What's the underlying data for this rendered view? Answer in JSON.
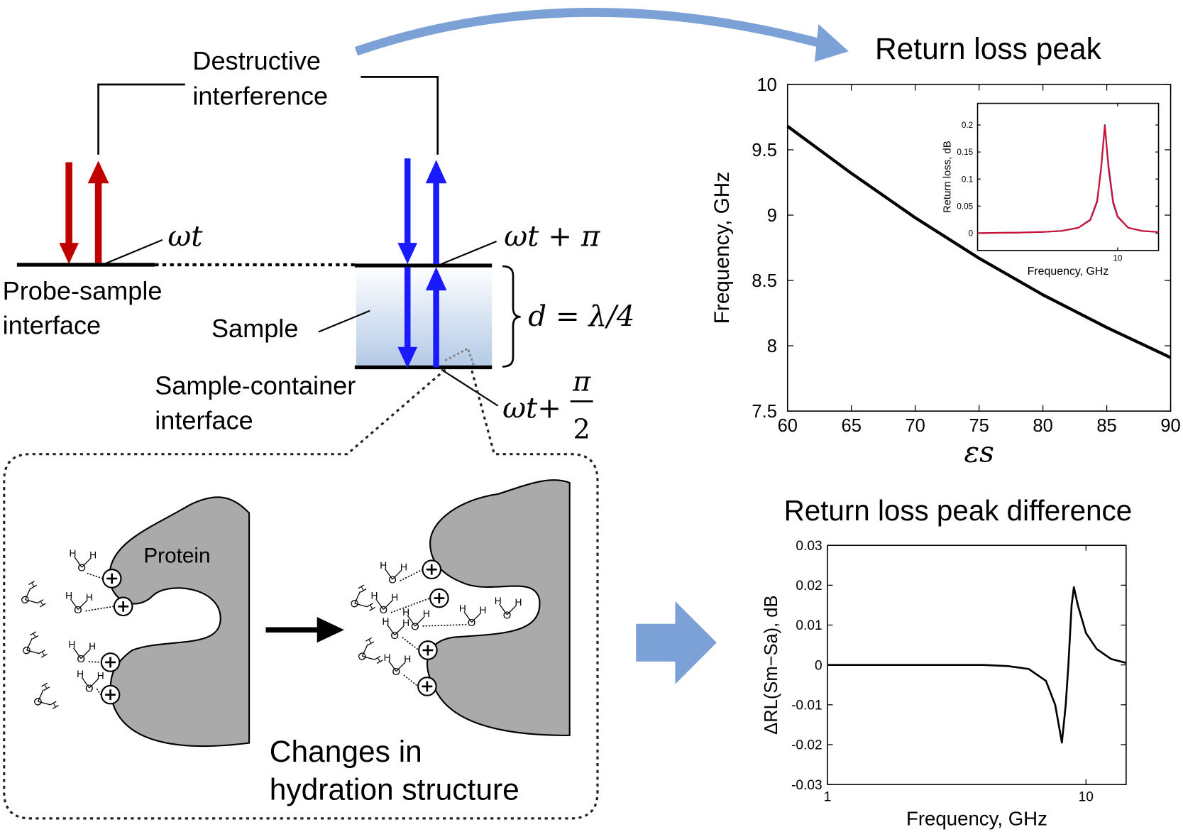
{
  "diagram": {
    "destructive_interference": [
      "Destructive",
      "interference"
    ],
    "phase_1": "ωt",
    "phase_2": "ωt + π",
    "phase_3": {
      "prefix": "ωt+",
      "numerator": "π",
      "denominator": "2"
    },
    "probe_sample_interface": [
      "Probe-sample",
      "interface"
    ],
    "sample": "Sample",
    "thickness": "d = λ/4",
    "sample_container_interface": [
      "Sample-container",
      "interface"
    ],
    "protein": "Protein",
    "caption": [
      "Changes in",
      "hydration structure"
    ],
    "water_atoms": {
      "hydrogen": "H",
      "oxygen": "O"
    }
  },
  "chart_data": [
    {
      "type": "line",
      "title": "Return loss peak",
      "xlabel": "εs",
      "ylabel": "Frequency, GHz",
      "x": [
        60,
        65,
        70,
        75,
        80,
        85,
        90
      ],
      "series": [
        {
          "color": "#000000",
          "values": [
            9.68,
            9.32,
            8.98,
            8.67,
            8.39,
            8.14,
            7.91
          ]
        }
      ],
      "xlim": [
        60,
        90
      ],
      "ylim": [
        7.5,
        10
      ],
      "xticks": [
        60,
        65,
        70,
        75,
        80,
        85,
        90
      ],
      "yticks": [
        7.5,
        8,
        8.5,
        9,
        9.5,
        10
      ]
    },
    {
      "type": "line",
      "xlabel": "Frequency, GHz",
      "ylabel": "Return loss, dB",
      "xscale": "log",
      "x": [
        2.8,
        4,
        5,
        6,
        7,
        7.8,
        8.3,
        8.6,
        8.9,
        9.2,
        9.6,
        10,
        11,
        12.5,
        14.5
      ],
      "series": [
        {
          "color": "#2040c0",
          "values": [
            0,
            0.001,
            0.002,
            0.004,
            0.01,
            0.025,
            0.06,
            0.12,
            0.2,
            0.12,
            0.055,
            0.03,
            0.01,
            0.004,
            0.002
          ]
        },
        {
          "color": "#d01030",
          "values": [
            0,
            0.001,
            0.002,
            0.004,
            0.01,
            0.024,
            0.058,
            0.118,
            0.198,
            0.125,
            0.058,
            0.031,
            0.01,
            0.004,
            0.002
          ]
        }
      ],
      "xlim": [
        2.8,
        14.5
      ],
      "ylim": [
        -0.032,
        0.24
      ],
      "xticks": [
        10
      ],
      "yticks": [
        0,
        0.05,
        0.1,
        0.15,
        0.2
      ]
    },
    {
      "type": "line",
      "title": "Return loss peak difference",
      "xlabel": "Frequency, GHz",
      "ylabel": "ΔRL(Sm−Sa), dB",
      "xscale": "log",
      "x": [
        1,
        2,
        4,
        5,
        6,
        7,
        7.6,
        8.07,
        8.35,
        8.55,
        8.8,
        8.98,
        9.3,
        10,
        11,
        12.5,
        14.3
      ],
      "series": [
        {
          "color": "#000000",
          "values": [
            0,
            0,
            0,
            -0.0003,
            -0.001,
            -0.004,
            -0.01,
            -0.0195,
            -0.01,
            0,
            0.015,
            0.0195,
            0.015,
            0.008,
            0.004,
            0.0015,
            0.0005
          ]
        }
      ],
      "xlim": [
        1,
        14.3
      ],
      "ylim": [
        -0.03,
        0.03
      ],
      "xticks": [
        1,
        10
      ],
      "yticks": [
        -0.03,
        -0.02,
        -0.01,
        0,
        0.01,
        0.02,
        0.03
      ]
    }
  ]
}
